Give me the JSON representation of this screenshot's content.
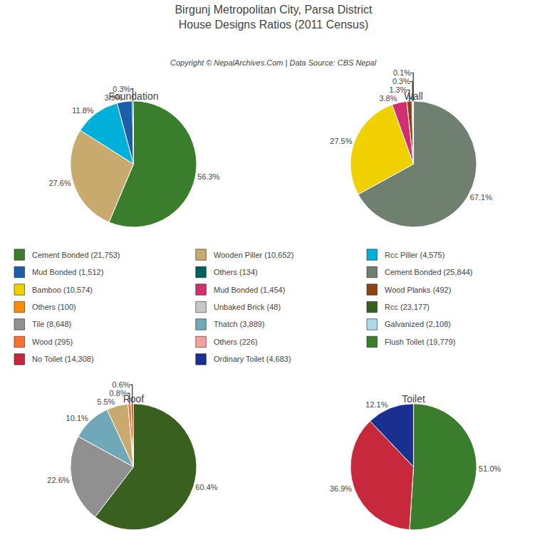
{
  "title": "Birgunj Metropolitan City, Parsa District\nHouse Designs Ratios (2011 Census)",
  "subtitle": "Copyright © NepalArchives.Com | Data Source: CBS Nepal",
  "chart_data": [
    {
      "type": "pie",
      "title": "Foundation",
      "values": [
        56.3,
        27.6,
        11.8,
        3.9,
        0.3
      ],
      "value_labels": [
        "56.3%",
        "27.6%",
        "11.8%",
        "3.9%",
        "0.3%"
      ],
      "colors": [
        "#3a7d2c",
        "#c8a96e",
        "#00b0d8",
        "#1a5fa8",
        "#006060"
      ],
      "data_labels": true
    },
    {
      "type": "pie",
      "title": "Wall",
      "values": [
        67.1,
        27.5,
        3.8,
        1.3,
        0.3,
        0.1
      ],
      "value_labels": [
        "67.1%",
        "27.5%",
        "3.8%",
        "1.3%",
        "0.3%",
        "0.1%"
      ],
      "colors": [
        "#708070",
        "#f0d000",
        "#d03070",
        "#8b4513",
        "#b0b0c0",
        "#404040"
      ],
      "data_labels": true
    },
    {
      "type": "pie",
      "title": "Roof",
      "values": [
        60.4,
        22.6,
        10.1,
        5.5,
        0.8,
        0.6
      ],
      "value_labels": [
        "60.4%",
        "22.6%",
        "10.1%",
        "5.5%",
        "0.8%",
        "0.6%"
      ],
      "colors": [
        "#3a6020",
        "#909090",
        "#70a8b8",
        "#c8a96e",
        "#ff7030",
        "#e05020"
      ],
      "data_labels": true
    },
    {
      "type": "pie",
      "title": "Toilet",
      "values": [
        51.0,
        36.9,
        12.1
      ],
      "value_labels": [
        "51.0%",
        "36.9%",
        "12.1%"
      ],
      "colors": [
        "#3a7d2c",
        "#c8283c",
        "#1a3090"
      ],
      "data_labels": true
    }
  ],
  "legend_entries": [
    [
      {
        "label": "Cement Bonded (21,753)",
        "color": "#3a7d2c"
      },
      {
        "label": "Mud Bonded (1,512)",
        "color": "#1a5fa8"
      },
      {
        "label": "Bamboo (10,574)",
        "color": "#f0d000"
      },
      {
        "label": "Others (100)",
        "color": "#ff8c00"
      },
      {
        "label": "Tile (8,648)",
        "color": "#909090"
      },
      {
        "label": "Wood (295)",
        "color": "#ff7030"
      },
      {
        "label": "No Toilet (14,308)",
        "color": "#c8283c"
      }
    ],
    [
      {
        "label": "Wooden Piller (10,652)",
        "color": "#c8a96e"
      },
      {
        "label": "Others (134)",
        "color": "#006060"
      },
      {
        "label": "Mud Bonded (1,454)",
        "color": "#d03070"
      },
      {
        "label": "Unbaked Brick (48)",
        "color": "#c8c8c8"
      },
      {
        "label": "Thatch (3,889)",
        "color": "#70a8b8"
      },
      {
        "label": "Others (226)",
        "color": "#f4a0a0"
      },
      {
        "label": "Ordinary Toilet (4,683)",
        "color": "#1a3090"
      }
    ],
    [
      {
        "label": "Rcc Piller (4,575)",
        "color": "#00b0d8"
      },
      {
        "label": "Cement Bonded (25,844)",
        "color": "#708070"
      },
      {
        "label": "Wood Planks (492)",
        "color": "#8b4513"
      },
      {
        "label": "Rcc (23,177)",
        "color": "#3a6020"
      },
      {
        "label": "Galvanized (2,108)",
        "color": "#add8e6"
      },
      {
        "label": "Flush Toilet (19,779)",
        "color": "#3a7d2c"
      }
    ]
  ]
}
